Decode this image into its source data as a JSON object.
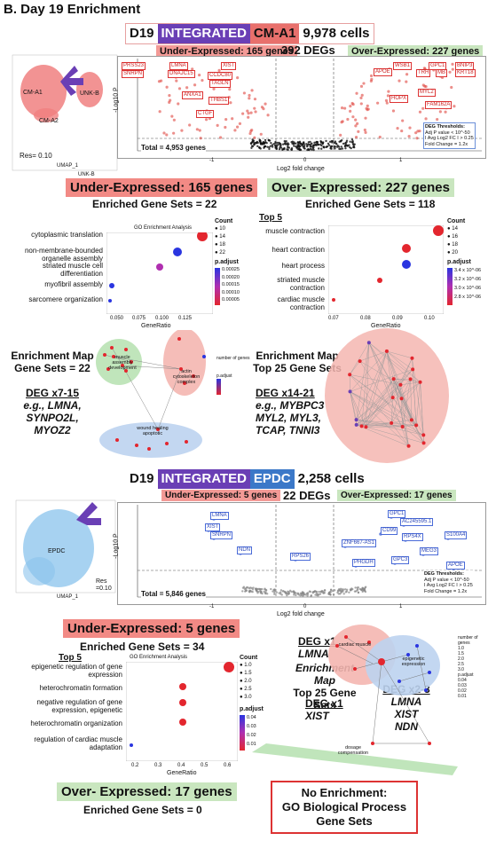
{
  "figure_title": "B. Day 19 Enrichment",
  "cm_section": {
    "header": {
      "day": "D19",
      "tag1": "INTEGRATED",
      "tag2": "CM-A1",
      "cells": "9,978 cells"
    },
    "under_pill": "Under-Expressed: 165 genes",
    "degs": "392 DEGs",
    "over_pill": "Over-Expressed: 227 genes",
    "umap": {
      "labels": [
        "CM-A1",
        "CM-A2",
        "UNK-B"
      ],
      "res": "Res= 0.10",
      "xlabel": "UMAP_1",
      "ylabel": "UMAP_2",
      "corner": "UNK-B"
    },
    "volcano": {
      "ylabel": "-Log10 P",
      "xlabel": "Log2 fold change",
      "xticks": [
        "-1",
        "0",
        "1"
      ],
      "yticks": [
        "0",
        "10",
        "20",
        "30",
        "40",
        "50",
        "60",
        "70",
        "80"
      ],
      "total": "Total = 4,953 genes",
      "thresholds": [
        "DEG Thresholds:",
        "Adj P value < 10^-50",
        "I Avg Log2 FC I > 0.25",
        "Fold Change = 1.2x"
      ],
      "under_genes": [
        "PRSS23",
        "LMNA",
        "XIST",
        "SNRPN",
        "DNAJC15",
        "CCDC80",
        "TAGLN",
        "ANXA1",
        "THBS1",
        "CTGF"
      ],
      "over_genes": [
        "WSB1",
        "GPC1",
        "BNIP3",
        "APOE",
        "TRH",
        "MB",
        "KRT18",
        "MYL2",
        "HOPX",
        "FAM162A"
      ]
    },
    "under": {
      "title": "Under-Expressed: 165 genes",
      "enriched": "Enriched Gene Sets = 22",
      "dot": {
        "title": "GO Enrichment Analysis",
        "terms": [
          "cytoplasmic translation",
          "non-membrane-bounded organelle assembly",
          "striated muscle cell differentiation",
          "myofibril assembly",
          "sarcomere organization"
        ],
        "xticks": [
          "0.050",
          "0.075",
          "0.100",
          "0.125"
        ],
        "xlabel": "GeneRatio",
        "count_title": "Count",
        "counts": [
          "10",
          "14",
          "18",
          "22"
        ],
        "padj_title": "p.adjust",
        "padj": [
          "0.00025",
          "0.00020",
          "0.00015",
          "0.00010",
          "0.00005"
        ]
      },
      "map_title": [
        "Enrichment Map",
        "Gene Sets = 22"
      ],
      "deg_title": "DEG x7-15",
      "deg_genes": [
        "e.g., LMNA,",
        "SYNPO2L,",
        "MYOZ2"
      ],
      "clusters": [
        "muscle assembly development",
        "actin cytoskeleton complex",
        "wound healing apoptotic"
      ]
    },
    "over": {
      "title": "Over- Expressed: 227 genes",
      "enriched": "Enriched Gene Sets = 118",
      "top": "Top 5",
      "dot": {
        "terms": [
          "muscle contraction",
          "heart contraction",
          "heart process",
          "striated muscle contraction",
          "cardiac muscle contraction"
        ],
        "xticks": [
          "0.07",
          "0.08",
          "0.09",
          "0.10"
        ],
        "xlabel": "GeneRatio",
        "count_title": "Count",
        "counts": [
          "14",
          "16",
          "18",
          "20"
        ],
        "padj_title": "p.adjust",
        "padj": [
          "3.4 x 10^-06",
          "3.2 x 10^-06",
          "3.0 x 10^-06",
          "2.8 x 10^-06"
        ]
      },
      "map_title": [
        "Enrichment Map",
        "Top 25 Gene Sets"
      ],
      "deg_title": "DEG x14-21",
      "deg_genes": [
        "e.g., MYBPC3",
        "MYL2, MYL3,",
        "TCAP, TNNI3"
      ]
    }
  },
  "epdc_section": {
    "header": {
      "day": "D19",
      "tag1": "INTEGRATED",
      "tag2": "EPDC",
      "cells": "2,258 cells"
    },
    "under_pill": "Under-Expressed: 5 genes",
    "degs": "22 DEGs",
    "over_pill": "Over-Expressed: 17 genes",
    "umap": {
      "label": "EPDC",
      "res": "Res =0.10",
      "xlabel": "UMAP_1",
      "ylabel": "UMAP_2"
    },
    "volcano": {
      "ylabel": "-Log10 P",
      "xlabel": "Log2 fold change",
      "xticks": [
        "-1",
        "0",
        "1"
      ],
      "yticks": [
        "0",
        "50",
        "100",
        "150"
      ],
      "total": "Total = 5,846 genes",
      "thresholds": [
        "DEG Thresholds:",
        "Adj P value < 10^-50",
        "I Avg Log2 FC I > 0.25",
        "Fold Change = 1.2x"
      ],
      "under_genes": [
        "LMNA",
        "XIST",
        "SNRPN",
        "NDN",
        "RPS26"
      ],
      "over_genes": [
        "GPC1",
        "AC245595.1",
        "CD99",
        "RPS4X",
        "S100A4",
        "ZNF667-AS1",
        "MEG3",
        "PHGDH",
        "GPC3",
        "APOE"
      ]
    },
    "under": {
      "title": "Under-Expressed: 5 genes",
      "enriched": "Enriched Gene Sets = 34",
      "top": "Top 5",
      "dot": {
        "title": "GO Enrichment Analysis",
        "terms": [
          "epigenetic regulation of gene expression",
          "heterochromatin formation",
          "negative regulation of gene expression, epigenetic",
          "heterochromatin organization",
          "regulation of cardiac muscle adaptation"
        ],
        "xticks": [
          "0.2",
          "0.3",
          "0.4",
          "0.5",
          "0.6"
        ],
        "xlabel": "GeneRatio",
        "count_title": "Count",
        "counts": [
          "1.0",
          "1.5",
          "2.0",
          "2.5",
          "3.0"
        ],
        "padj_title": "p.adjust",
        "padj": [
          "0.04",
          "0.03",
          "0.02",
          "0.01"
        ]
      },
      "deg1_title": "DEG x1",
      "deg1_gene": "LMNA",
      "map_title": [
        "Enrichment Map",
        "Top 25 Gene Sets"
      ],
      "deg2_title": "DEG x1",
      "deg2_gene": "XIST",
      "deg3_title": "DEG x2-3",
      "deg3_genes": [
        "LMNA",
        "XIST",
        "NDN"
      ],
      "clusters": [
        "cardiac muscle",
        "epigenetic expression",
        "dosage compensation"
      ],
      "legend_title": "number of genes",
      "legend_vals": [
        "1.0",
        "1.5",
        "2.0",
        "2.5",
        "3.0"
      ],
      "legend_padj": "p.adjust",
      "legend_padj_vals": [
        "0.04",
        "0.03",
        "0.02",
        "0.01"
      ]
    },
    "over": {
      "title": "Over- Expressed: 17 genes",
      "enriched": "Enriched Gene Sets = 0"
    },
    "no_enrichment": [
      "No Enrichment:",
      "GO Biological Process",
      "Gene Sets"
    ]
  },
  "colors": {
    "integrated": "#6a3fb5",
    "cm": "#e8706c",
    "epdc": "#3b78c8",
    "under": "#f39a96",
    "over": "#c9e6bf",
    "dot_high": "#e3262e",
    "dot_low": "#2a35e0"
  }
}
